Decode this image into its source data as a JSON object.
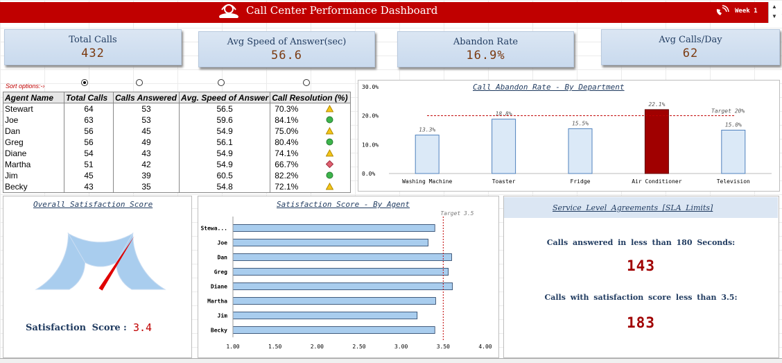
{
  "header": {
    "title": "Call Center Performance Dashboard",
    "week_label": "Week 1"
  },
  "kpis": [
    {
      "label": "Total Calls",
      "value": "432"
    },
    {
      "label": "Avg Speed of Answer(sec)",
      "value": "56.6"
    },
    {
      "label": "Abandon Rate",
      "value": "16.9%"
    },
    {
      "label": "Avg Calls/Day",
      "value": "62"
    }
  ],
  "sort_options_label": "Sort options:-›",
  "agent_table": {
    "headers": [
      "Agent Name",
      "Total Calls",
      "Calls Answered",
      "Avg. Speed of Answer",
      "Call Resolution (%)"
    ],
    "rows": [
      {
        "name": "Stewart",
        "total": "64",
        "answered": "53",
        "speed": "56.5",
        "resolution": "70.3%",
        "status": "warning"
      },
      {
        "name": "Joe",
        "total": "63",
        "answered": "53",
        "speed": "59.6",
        "resolution": "84.1%",
        "status": "good"
      },
      {
        "name": "Dan",
        "total": "56",
        "answered": "45",
        "speed": "54.9",
        "resolution": "75.0%",
        "status": "warning"
      },
      {
        "name": "Greg",
        "total": "56",
        "answered": "49",
        "speed": "56.1",
        "resolution": "80.4%",
        "status": "good"
      },
      {
        "name": "Diane",
        "total": "54",
        "answered": "43",
        "speed": "54.9",
        "resolution": "74.1%",
        "status": "warning"
      },
      {
        "name": "Martha",
        "total": "51",
        "answered": "42",
        "speed": "54.9",
        "resolution": "66.7%",
        "status": "bad"
      },
      {
        "name": "Jim",
        "total": "45",
        "answered": "39",
        "speed": "60.5",
        "resolution": "82.2%",
        "status": "good"
      },
      {
        "name": "Becky",
        "total": "43",
        "answered": "35",
        "speed": "54.8",
        "resolution": "72.1%",
        "status": "warning"
      }
    ]
  },
  "chart_data": [
    {
      "type": "bar",
      "title": "Call Abandon Rate - By Department",
      "categories": [
        "Washing Machine",
        "Toaster",
        "Fridge",
        "Air Conditioner",
        "Television"
      ],
      "values": [
        13.3,
        18.8,
        15.5,
        22.1,
        15.0
      ],
      "value_labels": [
        "13.3%",
        "18.8%",
        "15.5%",
        "22.1%",
        "15.0%"
      ],
      "highlight_category": "Air Conditioner",
      "ylim": [
        0,
        30
      ],
      "yticks": [
        "0.0%",
        "10.0%",
        "20.0%",
        "30.0%"
      ],
      "target": 20,
      "target_label": "Target 20%",
      "colors": {
        "bar": "#dbe9f7",
        "bar_border": "#4f81bd",
        "highlight": "#a00000",
        "target": "#c00000"
      }
    },
    {
      "type": "bar",
      "orientation": "horizontal",
      "title": "Satisfaction Score - By Agent",
      "categories": [
        "Stewa...",
        "Joe",
        "Dan",
        "Greg",
        "Diane",
        "Martha",
        "Jim",
        "Becky"
      ],
      "values": [
        3.4,
        3.32,
        3.6,
        3.56,
        3.61,
        3.41,
        3.19,
        3.4
      ],
      "xlim": [
        1.0,
        4.0
      ],
      "xticks": [
        "1.00",
        "1.50",
        "2.00",
        "2.50",
        "3.00",
        "3.50",
        "4.00"
      ],
      "target": 3.5,
      "target_label": "Target 3.5",
      "colors": {
        "bar": "#a9cdee",
        "bar_border": "#1f3a5f",
        "target": "#c00000"
      }
    },
    {
      "type": "gauge",
      "title": "Overall Satisfaction Score",
      "value": 3.4,
      "range": [
        0,
        5
      ],
      "colors": {
        "arc": "#a9cdee",
        "needle": "#e00000"
      }
    }
  ],
  "satisfaction": {
    "label": "Satisfaction Score",
    "colon": ":",
    "value": "3.4"
  },
  "sla": {
    "title": "Service Level Agreements [SLA Limits]",
    "items": [
      {
        "label": "Calls answered in less than 180 Seconds:",
        "value": "143"
      },
      {
        "label": "Calls with satisfaction score less than 3.5:",
        "value": "183"
      }
    ]
  }
}
